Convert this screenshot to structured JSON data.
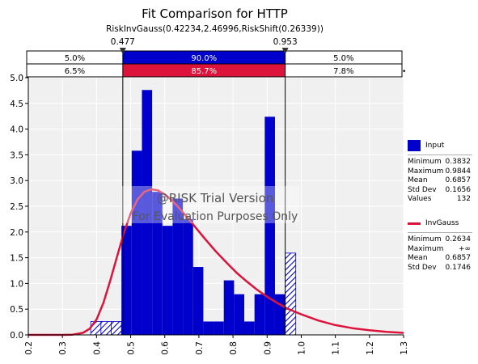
{
  "title": "Fit Comparison for HTTP",
  "subtitle": "RiskInvGauss(0.42234,2.46996,RiskShift(0.26339))",
  "watermark": {
    "line1": "@RISK Trial Version",
    "line2": "For Evaluation Purposes Only"
  },
  "markers": {
    "left": "0.477",
    "right": "0.953"
  },
  "bands": {
    "input": {
      "left": "5.0%",
      "middle": "90.0%",
      "right": "5.0%"
    },
    "fit": {
      "left": "6.5%",
      "middle": "85.7%",
      "right": "7.8%"
    }
  },
  "legend": {
    "input": {
      "label": "Input",
      "stats": [
        {
          "name": "Minimum",
          "value": "0.3832"
        },
        {
          "name": "Maximum",
          "value": "0.9844"
        },
        {
          "name": "Mean",
          "value": "0.6857"
        },
        {
          "name": "Std Dev",
          "value": "0.1656"
        },
        {
          "name": "Values",
          "value": "132"
        }
      ]
    },
    "fit": {
      "label": "InvGauss",
      "stats": [
        {
          "name": "Minimum",
          "value": "0.2634"
        },
        {
          "name": "Maximum",
          "value": "+∞"
        },
        {
          "name": "Mean",
          "value": "0.6857"
        },
        {
          "name": "Std Dev",
          "value": "0.1746"
        }
      ]
    }
  },
  "colors": {
    "input": "#0000cc",
    "fit": "#dc143c",
    "band_input": "#0000cc",
    "band_fit": "#dc143c",
    "plot_bg": "#f0f0f0"
  },
  "chart_data": {
    "type": "bar",
    "xlim": [
      0.2,
      1.3
    ],
    "ylim": [
      0,
      5.0
    ],
    "x_ticks": [
      "0.2",
      "0.3",
      "0.4",
      "0.5",
      "0.6",
      "0.7",
      "0.8",
      "0.9",
      "1.0",
      "1.1",
      "1.2",
      "1.3"
    ],
    "y_ticks": [
      "0.0",
      "0.5",
      "1.0",
      "1.5",
      "2.0",
      "2.5",
      "3.0",
      "3.5",
      "4.0",
      "4.5",
      "5.0"
    ],
    "marker_x": [
      0.477,
      0.953
    ],
    "histogram": [
      {
        "x0": 0.383,
        "x1": 0.413,
        "value": 0.26
      },
      {
        "x0": 0.413,
        "x1": 0.443,
        "value": 0.26
      },
      {
        "x0": 0.443,
        "x1": 0.473,
        "value": 0.26
      },
      {
        "x0": 0.473,
        "x1": 0.503,
        "value": 2.12
      },
      {
        "x0": 0.503,
        "x1": 0.533,
        "value": 3.58
      },
      {
        "x0": 0.533,
        "x1": 0.563,
        "value": 4.76
      },
      {
        "x0": 0.563,
        "x1": 0.593,
        "value": 2.78
      },
      {
        "x0": 0.593,
        "x1": 0.623,
        "value": 2.12
      },
      {
        "x0": 0.623,
        "x1": 0.653,
        "value": 2.65
      },
      {
        "x0": 0.653,
        "x1": 0.683,
        "value": 2.25
      },
      {
        "x0": 0.683,
        "x1": 0.713,
        "value": 1.32
      },
      {
        "x0": 0.713,
        "x1": 0.743,
        "value": 0.26
      },
      {
        "x0": 0.743,
        "x1": 0.773,
        "value": 0.26
      },
      {
        "x0": 0.773,
        "x1": 0.803,
        "value": 1.06
      },
      {
        "x0": 0.803,
        "x1": 0.833,
        "value": 0.79
      },
      {
        "x0": 0.833,
        "x1": 0.863,
        "value": 0.26
      },
      {
        "x0": 0.863,
        "x1": 0.893,
        "value": 0.79
      },
      {
        "x0": 0.893,
        "x1": 0.923,
        "value": 4.24
      },
      {
        "x0": 0.923,
        "x1": 0.953,
        "value": 0.79
      },
      {
        "x0": 0.953,
        "x1": 0.984,
        "value": 1.59
      }
    ],
    "fit_curve": {
      "name": "InvGauss",
      "x": [
        0.2,
        0.25,
        0.3,
        0.33,
        0.36,
        0.38,
        0.4,
        0.42,
        0.44,
        0.46,
        0.48,
        0.5,
        0.52,
        0.54,
        0.56,
        0.58,
        0.6,
        0.62,
        0.64,
        0.66,
        0.68,
        0.7,
        0.72,
        0.75,
        0.78,
        0.81,
        0.84,
        0.87,
        0.9,
        0.93,
        0.96,
        1.0,
        1.05,
        1.1,
        1.15,
        1.2,
        1.25,
        1.3
      ],
      "y": [
        0,
        0,
        0,
        0.005,
        0.04,
        0.12,
        0.3,
        0.62,
        1.05,
        1.52,
        1.98,
        2.36,
        2.63,
        2.78,
        2.83,
        2.81,
        2.73,
        2.62,
        2.48,
        2.33,
        2.17,
        2.01,
        1.85,
        1.62,
        1.41,
        1.21,
        1.04,
        0.88,
        0.74,
        0.62,
        0.51,
        0.4,
        0.28,
        0.19,
        0.13,
        0.09,
        0.06,
        0.04
      ]
    }
  }
}
